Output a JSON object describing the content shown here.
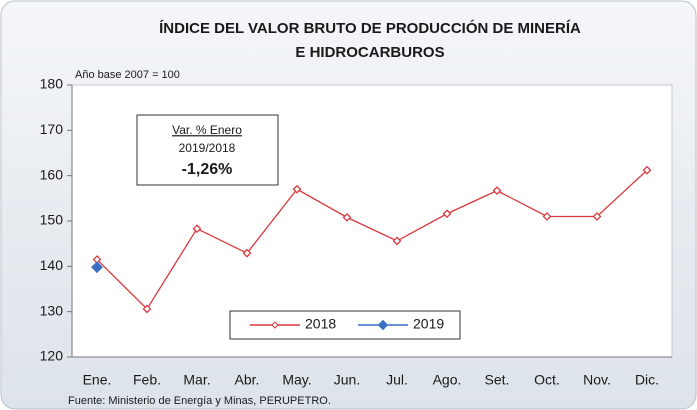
{
  "chart_data": {
    "type": "line",
    "title": [
      "ÍNDICE DEL VALOR BRUTO DE PRODUCCIÓN DE MINERÍA",
      "E HIDROCARBUROS"
    ],
    "subtitle": "Año base  2007  =  100",
    "categories": [
      "Ene.",
      "Feb.",
      "Mar.",
      "Abr.",
      "May.",
      "Jun.",
      "Jul.",
      "Ago.",
      "Set.",
      "Oct.",
      "Nov.",
      "Dic."
    ],
    "series": [
      {
        "name": "2018",
        "color": "#d9393e",
        "values": [
          141.5,
          130.6,
          148.3,
          142.9,
          157,
          150.8,
          145.6,
          151.6,
          156.7,
          151,
          151,
          161.2
        ]
      },
      {
        "name": "2019",
        "color": "#3a6fc4",
        "values": [
          139.8,
          null,
          null,
          null,
          null,
          null,
          null,
          null,
          null,
          null,
          null,
          null
        ]
      }
    ],
    "ylim": [
      120,
      180
    ],
    "yticks": [
      120,
      130,
      140,
      150,
      160,
      170,
      180
    ],
    "grid": false,
    "annotation": [
      "Var. % Enero",
      "2019/2018",
      "-1,26%"
    ],
    "source": "Fuente: Ministerio de Energía y Minas, PERUPETRO."
  }
}
